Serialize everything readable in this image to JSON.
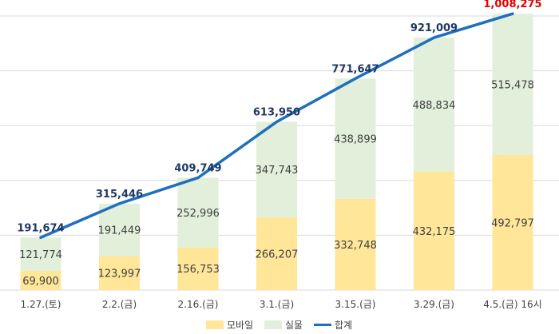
{
  "chart_data": {
    "type": "bar",
    "stacked": true,
    "categories": [
      "1.27.(토)",
      "2.2.(금)",
      "2.16.(금)",
      "3.1.(금)",
      "3.15.(금)",
      "3.29.(금)",
      "4.5.(금) 16시"
    ],
    "series": [
      {
        "name": "모바일",
        "values": [
          69900,
          123997,
          156753,
          266207,
          332748,
          432175,
          492797
        ],
        "color": "#ffe699"
      },
      {
        "name": "실물",
        "values": [
          121774,
          191449,
          252996,
          347743,
          438899,
          488834,
          515478
        ],
        "color": "#e2efda"
      }
    ],
    "line_series": {
      "name": "합계",
      "values": [
        191674,
        315446,
        409749,
        613950,
        771647,
        921009,
        1008275
      ],
      "color": "#1f6fbf"
    },
    "value_labels": {
      "mobile": [
        "69,900",
        "123,997",
        "156,753",
        "266,207",
        "332,748",
        "432,175",
        "492,797"
      ],
      "physical": [
        "121,774",
        "191,449",
        "252,996",
        "347,743",
        "438,899",
        "488,834",
        "515,478"
      ],
      "total": [
        "191,674",
        "315,446",
        "409,749",
        "613,950",
        "771,647",
        "921,009",
        "1,008,275"
      ]
    },
    "highlight_color": "#e60000",
    "ylim": [
      0,
      1000000
    ],
    "grid": true,
    "legend": "bottom"
  }
}
